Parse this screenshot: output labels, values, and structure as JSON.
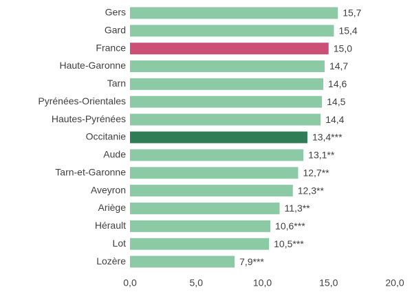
{
  "chart_data": {
    "type": "barh",
    "categories": [
      "Gers",
      "Gard",
      "France",
      "Haute-Garonne",
      "Tarn",
      "Pyrénées-Orientales",
      "Hautes-Pyrénées",
      "Occitanie",
      "Aude",
      "Tarn-et-Garonne",
      "Aveyron",
      "Ariège",
      "Hérault",
      "Lot",
      "Lozère"
    ],
    "values": [
      15.7,
      15.4,
      15.0,
      14.7,
      14.6,
      14.5,
      14.4,
      13.4,
      13.1,
      12.7,
      12.3,
      11.3,
      10.6,
      10.5,
      7.9
    ],
    "value_labels": [
      "15,7",
      "15,4",
      "15,0",
      "14,7",
      "14,6",
      "14,5",
      "14,4",
      "13,4***",
      "13,1**",
      "12,7**",
      "12,3**",
      "11,3**",
      "10,6***",
      "10,5***",
      "7,9***"
    ],
    "colors": [
      "#8ccaa5",
      "#8ccaa5",
      "#cc5075",
      "#8ccaa5",
      "#8ccaa5",
      "#8ccaa5",
      "#8ccaa5",
      "#2f7d56",
      "#8ccaa5",
      "#8ccaa5",
      "#8ccaa5",
      "#8ccaa5",
      "#8ccaa5",
      "#8ccaa5",
      "#8ccaa5"
    ],
    "xlim": [
      0,
      20
    ],
    "xticks": [
      {
        "value": 0,
        "label": "0,0"
      },
      {
        "value": 5,
        "label": "5,0"
      },
      {
        "value": 10,
        "label": "10,0"
      },
      {
        "value": 15,
        "label": "15,0"
      },
      {
        "value": 20,
        "label": "20,0"
      }
    ],
    "grid": false
  }
}
